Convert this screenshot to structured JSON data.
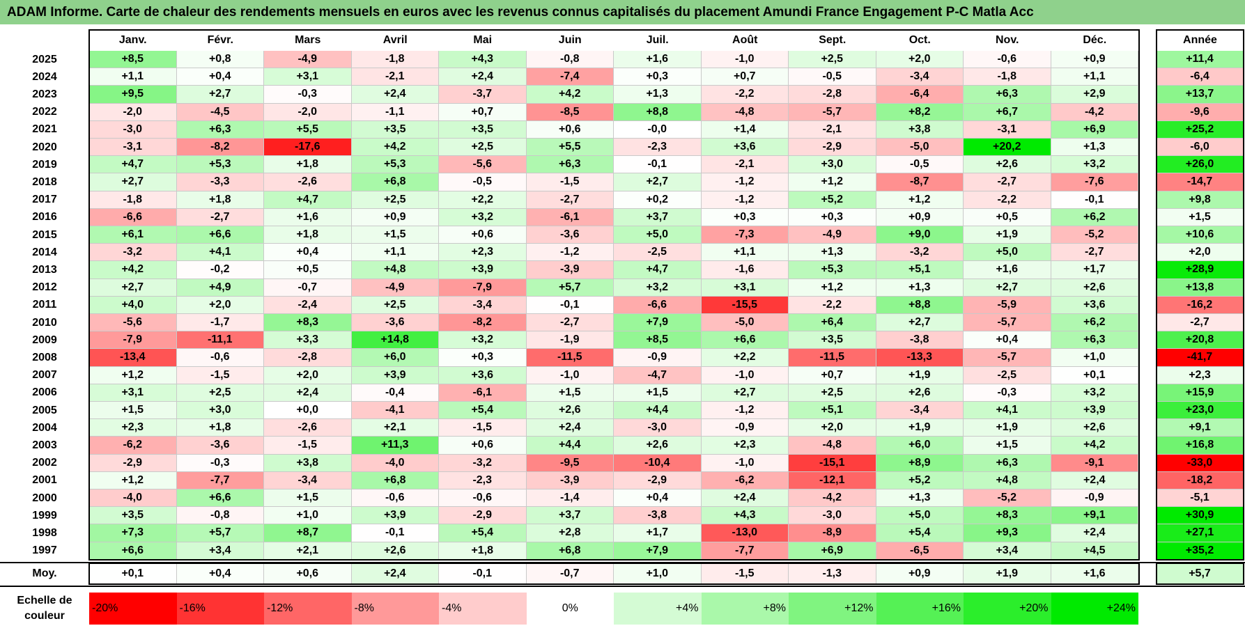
{
  "title": "ADAM Informe. Carte de chaleur des rendements mensuels en euros avec les revenus connus capitalisés du placement Amundi France Engagement P-C Matla Acc",
  "colors": {
    "title_bg": "#8fd18c",
    "neg_full": "#ff0000",
    "pos_full": "#00ee00"
  },
  "chart_data": {
    "type": "heatmap",
    "title": "ADAM Informe. Carte de chaleur des rendements mensuels en euros avec les revenus connus capitalisés du placement Amundi France Engagement P-C Matla Acc",
    "months": [
      "Janv.",
      "Févr.",
      "Mars",
      "Avril",
      "Mai",
      "Juin",
      "Juil.",
      "Août",
      "Sept.",
      "Oct.",
      "Nov.",
      "Déc."
    ],
    "year_header": "Année",
    "rows": [
      {
        "year": "2025",
        "values": [
          "+8,5",
          "+0,8",
          "-4,9",
          "-1,8",
          "+4,3",
          "-0,8",
          "+1,6",
          "-1,0",
          "+2,5",
          "+2,0",
          "-0,6",
          "+0,9"
        ],
        "annual": "+11,4"
      },
      {
        "year": "2024",
        "values": [
          "+1,1",
          "+0,4",
          "+3,1",
          "-2,1",
          "+2,4",
          "-7,4",
          "+0,3",
          "+0,7",
          "-0,5",
          "-3,4",
          "-1,8",
          "+1,1"
        ],
        "annual": "-6,4"
      },
      {
        "year": "2023",
        "values": [
          "+9,5",
          "+2,7",
          "-0,3",
          "+2,4",
          "-3,7",
          "+4,2",
          "+1,3",
          "-2,2",
          "-2,8",
          "-6,4",
          "+6,3",
          "+2,9"
        ],
        "annual": "+13,7"
      },
      {
        "year": "2022",
        "values": [
          "-2,0",
          "-4,5",
          "-2,0",
          "-1,1",
          "+0,7",
          "-8,5",
          "+8,8",
          "-4,8",
          "-5,7",
          "+8,2",
          "+6,7",
          "-4,2"
        ],
        "annual": "-9,6"
      },
      {
        "year": "2021",
        "values": [
          "-3,0",
          "+6,3",
          "+5,5",
          "+3,5",
          "+3,5",
          "+0,6",
          "-0,0",
          "+1,4",
          "-2,1",
          "+3,8",
          "-3,1",
          "+6,9"
        ],
        "annual": "+25,2"
      },
      {
        "year": "2020",
        "values": [
          "-3,1",
          "-8,2",
          "-17,6",
          "+4,2",
          "+2,5",
          "+5,5",
          "-2,3",
          "+3,6",
          "-2,9",
          "-5,0",
          "+20,2",
          "+1,3"
        ],
        "annual": "-6,0"
      },
      {
        "year": "2019",
        "values": [
          "+4,7",
          "+5,3",
          "+1,8",
          "+5,3",
          "-5,6",
          "+6,3",
          "-0,1",
          "-2,1",
          "+3,0",
          "-0,5",
          "+2,6",
          "+3,2"
        ],
        "annual": "+26,0"
      },
      {
        "year": "2018",
        "values": [
          "+2,7",
          "-3,3",
          "-2,6",
          "+6,8",
          "-0,5",
          "-1,5",
          "+2,7",
          "-1,2",
          "+1,2",
          "-8,7",
          "-2,7",
          "-7,6"
        ],
        "annual": "-14,7"
      },
      {
        "year": "2017",
        "values": [
          "-1,8",
          "+1,8",
          "+4,7",
          "+2,5",
          "+2,2",
          "-2,7",
          "+0,2",
          "-1,2",
          "+5,2",
          "+1,2",
          "-2,2",
          "-0,1"
        ],
        "annual": "+9,8"
      },
      {
        "year": "2016",
        "values": [
          "-6,6",
          "-2,7",
          "+1,6",
          "+0,9",
          "+3,2",
          "-6,1",
          "+3,7",
          "+0,3",
          "+0,3",
          "+0,9",
          "+0,5",
          "+6,2"
        ],
        "annual": "+1,5"
      },
      {
        "year": "2015",
        "values": [
          "+6,1",
          "+6,6",
          "+1,8",
          "+1,5",
          "+0,6",
          "-3,6",
          "+5,0",
          "-7,3",
          "-4,9",
          "+9,0",
          "+1,9",
          "-5,2"
        ],
        "annual": "+10,6"
      },
      {
        "year": "2014",
        "values": [
          "-3,2",
          "+4,1",
          "+0,4",
          "+1,1",
          "+2,3",
          "-1,2",
          "-2,5",
          "+1,1",
          "+1,3",
          "-3,2",
          "+5,0",
          "-2,7"
        ],
        "annual": "+2,0"
      },
      {
        "year": "2013",
        "values": [
          "+4,2",
          "-0,2",
          "+0,5",
          "+4,8",
          "+3,9",
          "-3,9",
          "+4,7",
          "-1,6",
          "+5,3",
          "+5,1",
          "+1,6",
          "+1,7"
        ],
        "annual": "+28,9"
      },
      {
        "year": "2012",
        "values": [
          "+2,7",
          "+4,9",
          "-0,7",
          "-4,9",
          "-7,9",
          "+5,7",
          "+3,2",
          "+3,1",
          "+1,2",
          "+1,3",
          "+2,7",
          "+2,6"
        ],
        "annual": "+13,8"
      },
      {
        "year": "2011",
        "values": [
          "+4,0",
          "+2,0",
          "-2,4",
          "+2,5",
          "-3,4",
          "-0,1",
          "-6,6",
          "-15,5",
          "-2,2",
          "+8,8",
          "-5,9",
          "+3,6"
        ],
        "annual": "-16,2"
      },
      {
        "year": "2010",
        "values": [
          "-5,6",
          "-1,7",
          "+8,3",
          "-3,6",
          "-8,2",
          "-2,7",
          "+7,9",
          "-5,0",
          "+6,4",
          "+2,7",
          "-5,7",
          "+6,2"
        ],
        "annual": "-2,7"
      },
      {
        "year": "2009",
        "values": [
          "-7,9",
          "-11,1",
          "+3,3",
          "+14,8",
          "+3,2",
          "-1,9",
          "+8,5",
          "+6,6",
          "+3,5",
          "-3,8",
          "+0,4",
          "+6,3"
        ],
        "annual": "+20,8"
      },
      {
        "year": "2008",
        "values": [
          "-13,4",
          "-0,6",
          "-2,8",
          "+6,0",
          "+0,3",
          "-11,5",
          "-0,9",
          "+2,2",
          "-11,5",
          "-13,3",
          "-5,7",
          "+1,0"
        ],
        "annual": "-41,7"
      },
      {
        "year": "2007",
        "values": [
          "+1,2",
          "-1,5",
          "+2,0",
          "+3,9",
          "+3,6",
          "-1,0",
          "-4,7",
          "-1,0",
          "+0,7",
          "+1,9",
          "-2,5",
          "+0,1"
        ],
        "annual": "+2,3"
      },
      {
        "year": "2006",
        "values": [
          "+3,1",
          "+2,5",
          "+2,4",
          "-0,4",
          "-6,1",
          "+1,5",
          "+1,5",
          "+2,7",
          "+2,5",
          "+2,6",
          "-0,3",
          "+3,2"
        ],
        "annual": "+15,9"
      },
      {
        "year": "2005",
        "values": [
          "+1,5",
          "+3,0",
          "+0,0",
          "-4,1",
          "+5,4",
          "+2,6",
          "+4,4",
          "-1,2",
          "+5,1",
          "-3,4",
          "+4,1",
          "+3,9"
        ],
        "annual": "+23,0"
      },
      {
        "year": "2004",
        "values": [
          "+2,3",
          "+1,8",
          "-2,6",
          "+2,1",
          "-1,5",
          "+2,4",
          "-3,0",
          "-0,9",
          "+2,0",
          "+1,9",
          "+1,9",
          "+2,6"
        ],
        "annual": "+9,1"
      },
      {
        "year": "2003",
        "values": [
          "-6,2",
          "-3,6",
          "-1,5",
          "+11,3",
          "+0,6",
          "+4,4",
          "+2,6",
          "+2,3",
          "-4,8",
          "+6,0",
          "+1,5",
          "+4,2"
        ],
        "annual": "+16,8"
      },
      {
        "year": "2002",
        "values": [
          "-2,9",
          "-0,3",
          "+3,8",
          "-4,0",
          "-3,2",
          "-9,5",
          "-10,4",
          "-1,0",
          "-15,1",
          "+8,9",
          "+6,3",
          "-9,1"
        ],
        "annual": "-33,0"
      },
      {
        "year": "2001",
        "values": [
          "+1,2",
          "-7,7",
          "-3,4",
          "+6,8",
          "-2,3",
          "-3,9",
          "-2,9",
          "-6,2",
          "-12,1",
          "+5,2",
          "+4,8",
          "+2,4"
        ],
        "annual": "-18,2"
      },
      {
        "year": "2000",
        "values": [
          "-4,0",
          "+6,6",
          "+1,5",
          "-0,6",
          "-0,6",
          "-1,4",
          "+0,4",
          "+2,4",
          "-4,2",
          "+1,3",
          "-5,2",
          "-0,9"
        ],
        "annual": "-5,1"
      },
      {
        "year": "1999",
        "values": [
          "+3,5",
          "-0,8",
          "+1,0",
          "+3,9",
          "-2,9",
          "+3,7",
          "-3,8",
          "+4,3",
          "-3,0",
          "+5,0",
          "+8,3",
          "+9,1"
        ],
        "annual": "+30,9"
      },
      {
        "year": "1998",
        "values": [
          "+7,3",
          "+5,7",
          "+8,7",
          "-0,1",
          "+5,4",
          "+2,8",
          "+1,7",
          "-13,0",
          "-8,9",
          "+5,4",
          "+9,3",
          "+2,4"
        ],
        "annual": "+27,1"
      },
      {
        "year": "1997",
        "values": [
          "+6,6",
          "+3,4",
          "+2,1",
          "+2,6",
          "+1,8",
          "+6,8",
          "+7,9",
          "-7,7",
          "+6,9",
          "-6,5",
          "+3,4",
          "+4,5"
        ],
        "annual": "+35,2"
      }
    ],
    "average": {
      "label": "Moy.",
      "values": [
        "+0,1",
        "+0,4",
        "+0,6",
        "+2,4",
        "-0,1",
        "-0,7",
        "+1,0",
        "-1,5",
        "-1,3",
        "+0,9",
        "+1,9",
        "+1,6"
      ],
      "annual": "+5,7"
    },
    "scale": {
      "label": "Echelle de couleur",
      "steps": [
        {
          "label": "-20%",
          "value": -20,
          "color": "#ff0000"
        },
        {
          "label": "-16%",
          "value": -16,
          "color": "#ff3333"
        },
        {
          "label": "-12%",
          "value": -12,
          "color": "#ff6666"
        },
        {
          "label": "-8%",
          "value": -8,
          "color": "#ff9999"
        },
        {
          "label": "-4%",
          "value": -4,
          "color": "#ffcccc"
        },
        {
          "label": "0%",
          "value": 0,
          "color": "#ffffff"
        },
        {
          "label": "+4%",
          "value": 4,
          "color": "#d4fbd4"
        },
        {
          "label": "+8%",
          "value": 8,
          "color": "#aaf8aa"
        },
        {
          "label": "+12%",
          "value": 12,
          "color": "#80f480"
        },
        {
          "label": "+16%",
          "value": 16,
          "color": "#55f155"
        },
        {
          "label": "+20%",
          "value": 20,
          "color": "#2bee2b"
        },
        {
          "label": "+24%",
          "value": 24,
          "color": "#00ea00"
        }
      ]
    }
  }
}
